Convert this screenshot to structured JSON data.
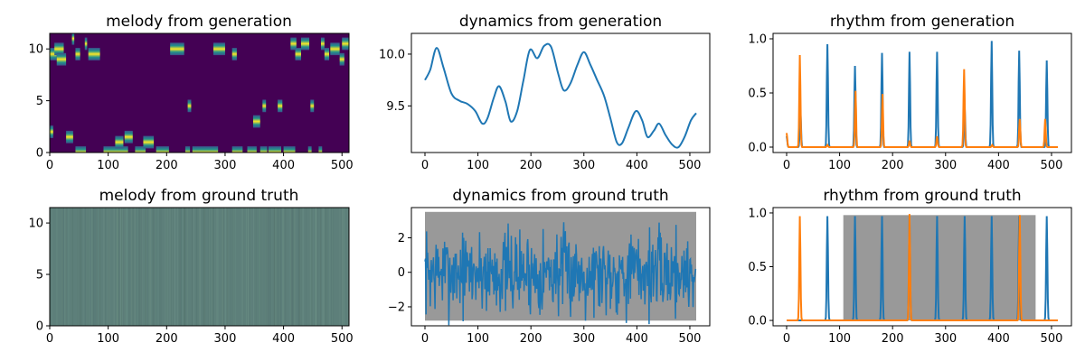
{
  "chart_data": [
    {
      "id": "melody_gen",
      "type": "heatmap",
      "title": "melody from generation",
      "xlim": [
        0,
        512
      ],
      "ylim": [
        0,
        11.5
      ],
      "xticks": [
        0,
        100,
        200,
        300,
        400,
        500
      ],
      "yticks": [
        0,
        5,
        10
      ],
      "xticklabels": [
        "0",
        "100",
        "200",
        "300",
        "400",
        "500"
      ],
      "yticklabels": [
        "0",
        "5",
        "10"
      ],
      "colormap": "viridis",
      "background_color": "#440154",
      "segments": [
        {
          "pitch": 9.5,
          "start": 0,
          "end": 12
        },
        {
          "pitch": 10,
          "start": 8,
          "end": 24
        },
        {
          "pitch": 9,
          "start": 12,
          "end": 28
        },
        {
          "pitch": 11,
          "start": 38,
          "end": 42
        },
        {
          "pitch": 9.5,
          "start": 44,
          "end": 52
        },
        {
          "pitch": 10.5,
          "start": 60,
          "end": 64
        },
        {
          "pitch": 9.5,
          "start": 66,
          "end": 86
        },
        {
          "pitch": 2,
          "start": 0,
          "end": 6
        },
        {
          "pitch": 1.5,
          "start": 28,
          "end": 40
        },
        {
          "pitch": 0,
          "start": 44,
          "end": 62
        },
        {
          "pitch": 0,
          "start": 92,
          "end": 134
        },
        {
          "pitch": 1,
          "start": 112,
          "end": 126
        },
        {
          "pitch": 1.5,
          "start": 128,
          "end": 142
        },
        {
          "pitch": 0,
          "start": 146,
          "end": 164
        },
        {
          "pitch": 1,
          "start": 160,
          "end": 178
        },
        {
          "pitch": 0,
          "start": 182,
          "end": 204
        },
        {
          "pitch": 10,
          "start": 206,
          "end": 230
        },
        {
          "pitch": 0,
          "start": 232,
          "end": 240
        },
        {
          "pitch": 0,
          "start": 244,
          "end": 288
        },
        {
          "pitch": 10,
          "start": 280,
          "end": 300
        },
        {
          "pitch": 4.5,
          "start": 236,
          "end": 242
        },
        {
          "pitch": 0,
          "start": 312,
          "end": 330
        },
        {
          "pitch": 9.5,
          "start": 312,
          "end": 320
        },
        {
          "pitch": 0,
          "start": 338,
          "end": 354
        },
        {
          "pitch": 3,
          "start": 348,
          "end": 360
        },
        {
          "pitch": 0,
          "start": 360,
          "end": 372
        },
        {
          "pitch": 4.5,
          "start": 364,
          "end": 370
        },
        {
          "pitch": 0,
          "start": 374,
          "end": 396
        },
        {
          "pitch": 4.5,
          "start": 390,
          "end": 398
        },
        {
          "pitch": 0,
          "start": 400,
          "end": 420
        },
        {
          "pitch": 10.5,
          "start": 412,
          "end": 422
        },
        {
          "pitch": 9.5,
          "start": 420,
          "end": 430
        },
        {
          "pitch": 10.5,
          "start": 430,
          "end": 444
        },
        {
          "pitch": 0,
          "start": 442,
          "end": 448
        },
        {
          "pitch": 4.5,
          "start": 446,
          "end": 452
        },
        {
          "pitch": 0,
          "start": 460,
          "end": 466
        },
        {
          "pitch": 10.5,
          "start": 464,
          "end": 470
        },
        {
          "pitch": 9.5,
          "start": 470,
          "end": 478
        },
        {
          "pitch": 10,
          "start": 480,
          "end": 496
        },
        {
          "pitch": 9,
          "start": 496,
          "end": 504
        },
        {
          "pitch": 10.5,
          "start": 500,
          "end": 512
        }
      ]
    },
    {
      "id": "dynamics_gen",
      "type": "line",
      "title": "dynamics from generation",
      "xlim": [
        -25.6,
        537.6
      ],
      "ylim": [
        9.05,
        10.2
      ],
      "xticks": [
        0,
        100,
        200,
        300,
        400,
        500
      ],
      "yticks": [
        9.5,
        10.0
      ],
      "xticklabels": [
        "0",
        "100",
        "200",
        "300",
        "400",
        "500"
      ],
      "yticklabels": [
        "9.5",
        "10.0"
      ],
      "series": [
        {
          "color": "#1f77b4",
          "x": [
            0,
            10,
            22,
            35,
            50,
            65,
            80,
            95,
            108,
            118,
            130,
            140,
            152,
            162,
            174,
            186,
            198,
            212,
            225,
            238,
            252,
            262,
            274,
            288,
            300,
            312,
            325,
            338,
            350,
            362,
            372,
            384,
            398,
            410,
            420,
            432,
            442,
            454,
            466,
            478,
            490,
            502,
            512
          ],
          "y": [
            9.75,
            9.85,
            10.06,
            9.87,
            9.62,
            9.55,
            9.52,
            9.45,
            9.33,
            9.38,
            9.58,
            9.69,
            9.54,
            9.35,
            9.45,
            9.75,
            10.04,
            9.96,
            10.08,
            10.07,
            9.8,
            9.65,
            9.71,
            9.9,
            10.02,
            9.9,
            9.75,
            9.6,
            9.38,
            9.15,
            9.14,
            9.29,
            9.45,
            9.36,
            9.2,
            9.26,
            9.33,
            9.22,
            9.13,
            9.1,
            9.2,
            9.36,
            9.43
          ]
        }
      ]
    },
    {
      "id": "rhythm_gen",
      "type": "line",
      "title": "rhythm from generation",
      "xlim": [
        -25.6,
        537.6
      ],
      "ylim": [
        -0.05,
        1.05
      ],
      "xticks": [
        0,
        100,
        200,
        300,
        400,
        500
      ],
      "yticks": [
        0.0,
        0.5,
        1.0
      ],
      "xticklabels": [
        "0",
        "100",
        "200",
        "300",
        "400",
        "500"
      ],
      "yticklabels": [
        "0.0",
        "0.5",
        "1.0"
      ],
      "series": [
        {
          "color": "#1f77b4",
          "baseline": 0,
          "peaks": [
            [
              0,
              0.1
            ],
            [
              26,
              0.35
            ],
            [
              77,
              0.95
            ],
            [
              129,
              0.75
            ],
            [
              180,
              0.87
            ],
            [
              232,
              0.88
            ],
            [
              284,
              0.88
            ],
            [
              336,
              0.37
            ],
            [
              387,
              0.98
            ],
            [
              439,
              0.89
            ],
            [
              491,
              0.8
            ]
          ]
        },
        {
          "color": "#ff7f0e",
          "baseline": 0,
          "peaks": [
            [
              0,
              0.13
            ],
            [
              25,
              0.85
            ],
            [
              77,
              0.02
            ],
            [
              130,
              0.52
            ],
            [
              181,
              0.49
            ],
            [
              232,
              0.06
            ],
            [
              284,
              0.1
            ],
            [
              335,
              0.72
            ],
            [
              388,
              0.02
            ],
            [
              440,
              0.26
            ],
            [
              488,
              0.26
            ]
          ]
        }
      ]
    },
    {
      "id": "melody_gt",
      "type": "heatmap",
      "title": "melody from ground truth",
      "xlim": [
        0,
        512
      ],
      "ylim": [
        0,
        11.5
      ],
      "xticks": [
        0,
        100,
        200,
        300,
        400,
        500
      ],
      "yticks": [
        0,
        5,
        10
      ],
      "xticklabels": [
        "0",
        "100",
        "200",
        "300",
        "400",
        "500"
      ],
      "yticklabels": [
        "0",
        "5",
        "10"
      ],
      "colormap": "viridis",
      "background_color": "#5d7f7a",
      "segments": []
    },
    {
      "id": "dynamics_gt",
      "type": "line",
      "title": "dynamics from ground truth",
      "xlim": [
        -25.6,
        537.6
      ],
      "ylim": [
        -3.1,
        3.75
      ],
      "xticks": [
        0,
        100,
        200,
        300,
        400,
        500
      ],
      "yticks": [
        -2,
        0,
        2
      ],
      "xticklabels": [
        "0",
        "100",
        "200",
        "300",
        "400",
        "500"
      ],
      "yticklabels": [
        "−2",
        "0",
        "2"
      ],
      "shaded_region": {
        "x": [
          0,
          512
        ],
        "y": [
          -2.8,
          3.5
        ],
        "color": "#999999"
      },
      "series": [
        {
          "color": "#1f77b4",
          "noise": {
            "n": 512,
            "mean": 0,
            "amplitude": 2.4,
            "seed": 7
          }
        }
      ]
    },
    {
      "id": "rhythm_gt",
      "type": "line",
      "title": "rhythm from ground truth",
      "xlim": [
        -25.6,
        537.6
      ],
      "ylim": [
        -0.05,
        1.05
      ],
      "xticks": [
        0,
        100,
        200,
        300,
        400,
        500
      ],
      "yticks": [
        0.0,
        0.5,
        1.0
      ],
      "xticklabels": [
        "0",
        "100",
        "200",
        "300",
        "400",
        "500"
      ],
      "yticklabels": [
        "0.0",
        "0.5",
        "1.0"
      ],
      "shaded_region": {
        "x": [
          107,
          470
        ],
        "y": [
          0,
          0.98
        ],
        "color": "#999999"
      },
      "series": [
        {
          "color": "#1f77b4",
          "baseline": 0,
          "peaks": [
            [
              77,
              0.97
            ],
            [
              129,
              0.97
            ],
            [
              180,
              0.97
            ],
            [
              232,
              0.97
            ],
            [
              284,
              0.97
            ],
            [
              336,
              0.97
            ],
            [
              387,
              0.97
            ],
            [
              439,
              0.97
            ],
            [
              491,
              0.97
            ]
          ]
        },
        {
          "color": "#ff7f0e",
          "baseline": 0,
          "peaks": [
            [
              25,
              0.97
            ],
            [
              232,
              0.99
            ],
            [
              440,
              0.98
            ]
          ]
        }
      ]
    }
  ]
}
